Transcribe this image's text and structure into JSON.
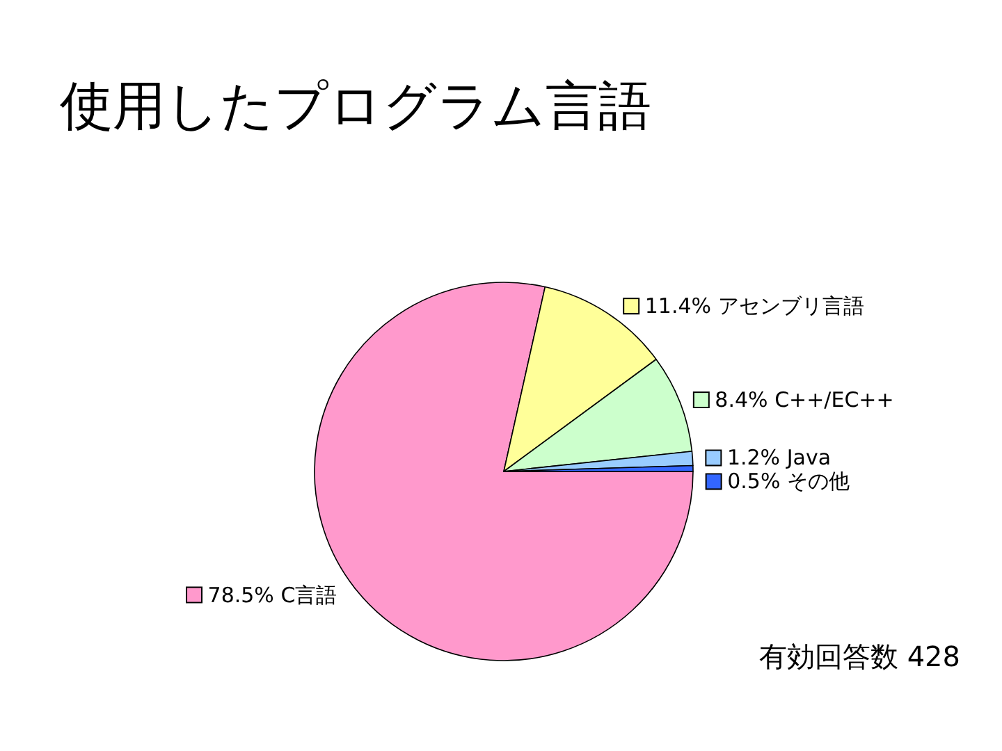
{
  "chart_data": {
    "type": "pie",
    "title": "使用したプログラム言語",
    "categories": [
      "C言語",
      "アセンブリ言語",
      "C++/EC++",
      "Java",
      "その他"
    ],
    "values": [
      78.5,
      11.4,
      8.4,
      1.2,
      0.5
    ],
    "value_labels": [
      "78.5%",
      "11.4%",
      "8.4%",
      "1.2%",
      "0.5%"
    ],
    "colors": [
      "#ff99cc",
      "#ffff99",
      "#ccffcc",
      "#99ccff",
      "#3366ff"
    ],
    "annotations": [
      "有効回答数 428"
    ],
    "legend": "right"
  }
}
